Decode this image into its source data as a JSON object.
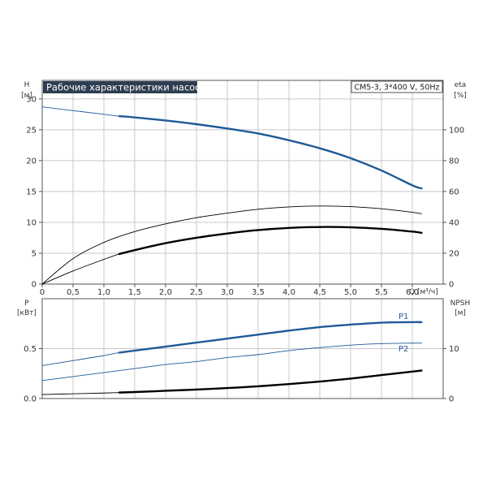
{
  "chart_data": {
    "title": "Рабочие характеристики насоса",
    "info_box": "CM5-3, 3*400 V, 50Hz",
    "colors": {
      "blue": "#1f5a96",
      "black": "#000000",
      "grid": "#c8c8c8",
      "title_bg": "#2e3e52"
    },
    "grid": true,
    "x_axis": {
      "label": "Q [м³/ч]",
      "range": [
        0,
        6.5
      ],
      "ticks": [
        0,
        0.5,
        1.0,
        1.5,
        2.0,
        2.5,
        3.0,
        3.5,
        4.0,
        4.5,
        5.0,
        5.5,
        6.0
      ],
      "tick_labels": [
        "0",
        "0,5",
        "1,0",
        "1,5",
        "2,0",
        "2,5",
        "3,0",
        "3,5",
        "4,0",
        "4,5",
        "5,0",
        "5,5",
        "6,0"
      ]
    },
    "upper": {
      "type": "line",
      "left_axis": {
        "label_line1": "H",
        "label_line2": "[м]",
        "range": [
          0,
          33
        ],
        "ticks": [
          0,
          5,
          10,
          15,
          20,
          25,
          30
        ]
      },
      "right_axis": {
        "label_line1": "eta",
        "label_line2": "[%]",
        "range": [
          0,
          132
        ],
        "ticks": [
          0,
          20,
          40,
          60,
          80,
          100
        ]
      },
      "series": [
        {
          "key": "H",
          "axis": "left",
          "color": "#1f5a96",
          "x": [
            0,
            0.5,
            1.0,
            1.25,
            1.5,
            2.0,
            2.5,
            3.0,
            3.5,
            4.0,
            4.5,
            5.0,
            5.5,
            6.0,
            6.15
          ],
          "y": [
            28.7,
            28.1,
            27.5,
            27.2,
            27.0,
            26.5,
            25.9,
            25.2,
            24.4,
            23.3,
            22.0,
            20.4,
            18.4,
            16.0,
            15.5
          ],
          "duty_from": 1.25
        },
        {
          "key": "eta_thin",
          "axis": "right",
          "color": "#000000",
          "x": [
            0,
            0.5,
            1.0,
            1.5,
            2.0,
            2.5,
            3.0,
            3.5,
            4.0,
            4.5,
            5.0,
            5.5,
            6.0,
            6.15
          ],
          "y": [
            0,
            16.5,
            27.0,
            34.0,
            39.0,
            43.0,
            46.0,
            48.5,
            50.0,
            50.6,
            50.2,
            48.8,
            46.5,
            45.6
          ],
          "duty_from": 6.15
        },
        {
          "key": "eta_thick",
          "axis": "right",
          "color": "#000000",
          "x": [
            0,
            0.5,
            1.0,
            1.25,
            1.5,
            2.0,
            2.5,
            3.0,
            3.5,
            4.0,
            4.5,
            5.0,
            5.5,
            6.0,
            6.15
          ],
          "y": [
            0,
            8.5,
            16.0,
            19.5,
            22.0,
            26.5,
            30.0,
            32.8,
            35.0,
            36.4,
            37.0,
            36.8,
            35.8,
            34.0,
            33.2
          ],
          "duty_from": 1.25
        }
      ]
    },
    "lower": {
      "type": "line",
      "left_axis": {
        "label_line1": "P",
        "label_line2": "[кВт]",
        "range": [
          0,
          1.0
        ],
        "ticks": [
          0,
          0.5
        ],
        "tick_labels": [
          "0.0",
          "0.5"
        ]
      },
      "right_axis": {
        "label_line1": "NPSH",
        "label_line2": "[м]",
        "range": [
          0,
          20
        ],
        "ticks": [
          0,
          10
        ],
        "tick_labels": [
          "0",
          "10"
        ]
      },
      "series": [
        {
          "key": "P1",
          "name": "P1",
          "axis": "left",
          "color": "#1f5a96",
          "x": [
            0,
            0.5,
            1.0,
            1.25,
            1.5,
            2.0,
            2.5,
            3.0,
            3.5,
            4.0,
            4.5,
            5.0,
            5.5,
            6.0,
            6.15
          ],
          "y": [
            0.33,
            0.38,
            0.43,
            0.46,
            0.48,
            0.52,
            0.56,
            0.6,
            0.64,
            0.68,
            0.715,
            0.74,
            0.76,
            0.765,
            0.765
          ],
          "duty_from": 1.25
        },
        {
          "key": "P2",
          "name": "P2",
          "axis": "left",
          "color": "#1f5a96",
          "x": [
            0,
            0.5,
            1.0,
            1.5,
            2.0,
            2.5,
            3.0,
            3.5,
            4.0,
            4.5,
            5.0,
            5.5,
            6.0,
            6.15
          ],
          "y": [
            0.18,
            0.22,
            0.26,
            0.3,
            0.34,
            0.37,
            0.41,
            0.44,
            0.48,
            0.51,
            0.535,
            0.55,
            0.555,
            0.555
          ],
          "duty_from": 6.15
        },
        {
          "key": "NPSH",
          "axis": "right",
          "color": "#000000",
          "x": [
            0,
            0.5,
            1.0,
            1.25,
            1.5,
            2.0,
            2.5,
            3.0,
            3.5,
            4.0,
            4.5,
            5.0,
            5.5,
            6.0,
            6.15
          ],
          "y": [
            0.8,
            0.95,
            1.1,
            1.2,
            1.3,
            1.55,
            1.8,
            2.1,
            2.45,
            2.9,
            3.4,
            4.0,
            4.7,
            5.4,
            5.6
          ],
          "duty_from": 1.25
        }
      ]
    }
  }
}
